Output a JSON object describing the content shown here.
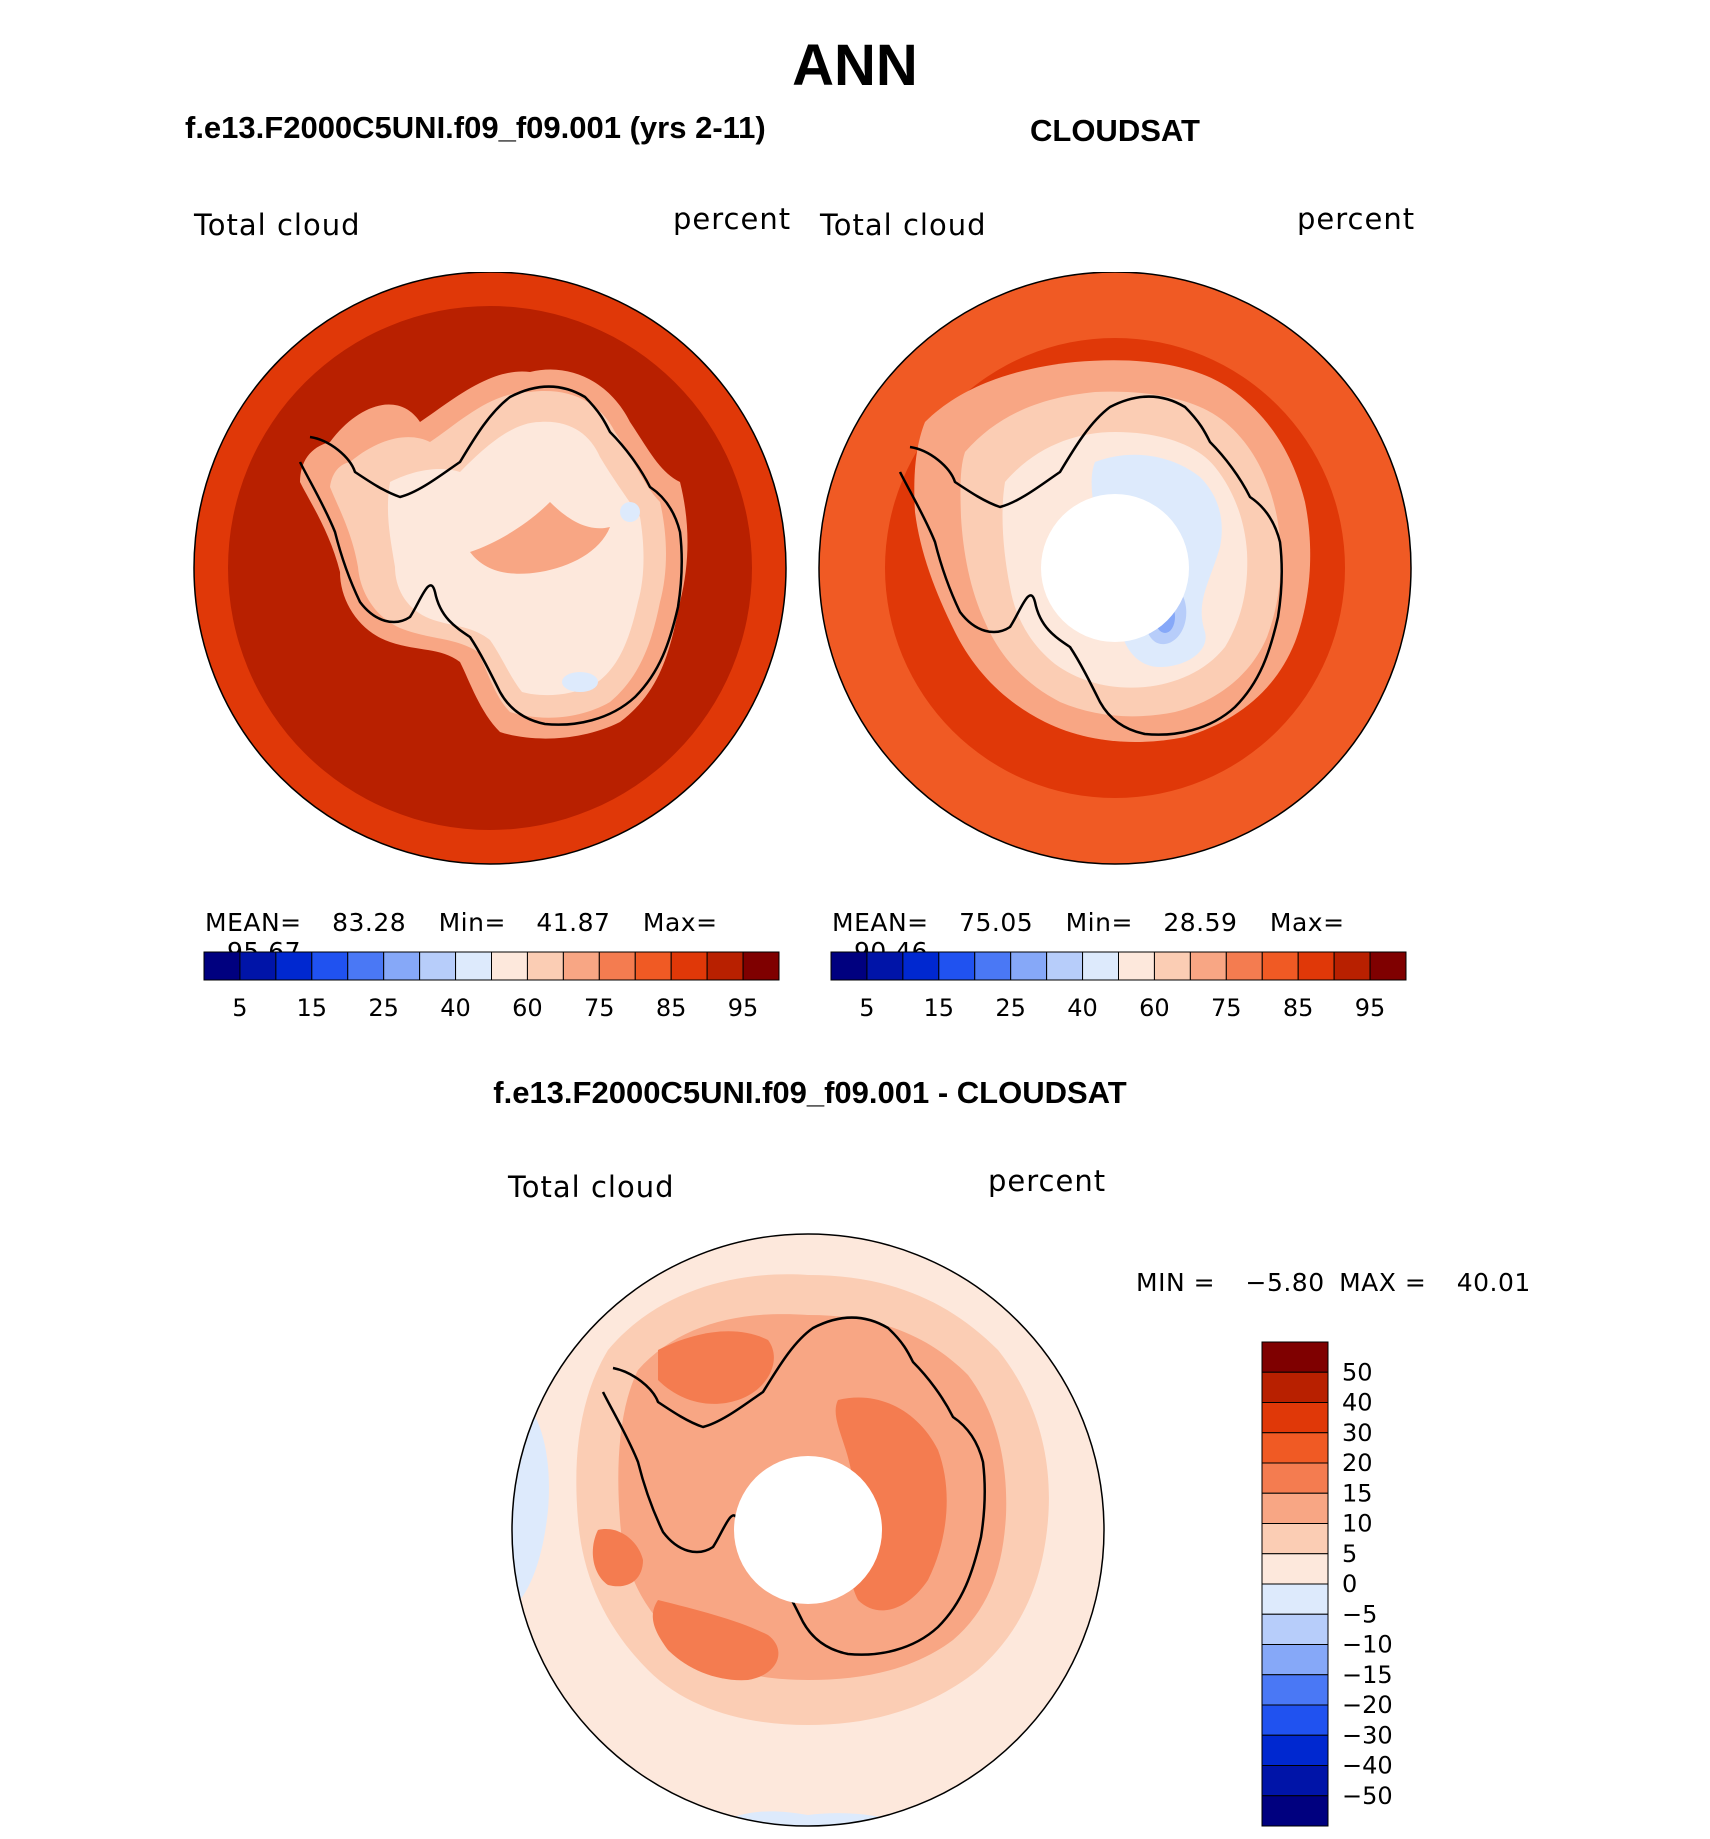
{
  "title": "ANN",
  "panels": [
    {
      "title": "f.e13.F2000C5UNI.f09_f09.001 (yrs 2-11)",
      "left_label": "Total cloud",
      "right_label": "percent",
      "stats": {
        "mean_label": "MEAN=",
        "mean": "83.28",
        "min_label": "Min=",
        "min": "41.87",
        "max_label": "Max=",
        "max": "95.67"
      }
    },
    {
      "title": "CLOUDSAT",
      "left_label": "Total cloud",
      "right_label": "percent",
      "stats": {
        "mean_label": "MEAN=",
        "mean": "75.05",
        "min_label": "Min=",
        "min": "28.59",
        "max_label": "Max=",
        "max": "90.46"
      }
    }
  ],
  "abs_colorbar": {
    "colors": [
      "#00007f",
      "#0014a8",
      "#0028d0",
      "#2052f0",
      "#4a78f5",
      "#86a8f8",
      "#b7cdfa",
      "#ddeafc",
      "#fde8dc",
      "#fbcdb4",
      "#f8a684",
      "#f47c50",
      "#f05a24",
      "#e03808",
      "#b82000",
      "#7f0000"
    ],
    "tick_labels": [
      "5",
      "15",
      "25",
      "40",
      "60",
      "75",
      "85",
      "95"
    ]
  },
  "diff": {
    "title": "f.e13.F2000C5UNI.f09_f09.001 - CLOUDSAT",
    "left_label": "Total cloud",
    "right_label": "percent",
    "minmax": {
      "min_label": "MIN =",
      "min": "−5.80",
      "max_label": "MAX =",
      "max": "40.01"
    },
    "colorbar": {
      "colors_top_to_bottom": [
        "#7f0000",
        "#b82000",
        "#e03808",
        "#f05a24",
        "#f47c50",
        "#f8a684",
        "#fbcdb4",
        "#fde8dc",
        "#ddeafc",
        "#b7cdfa",
        "#86a8f8",
        "#4a78f5",
        "#2052f0",
        "#0028d0",
        "#0014a8",
        "#00007f"
      ],
      "tick_labels": [
        "50",
        "40",
        "30",
        "20",
        "15",
        "10",
        "5",
        "0",
        "−5",
        "−10",
        "−15",
        "−20",
        "−30",
        "−40",
        "−50"
      ]
    }
  },
  "map_colors": {
    "ocean_model": "#b82000",
    "ocean_model_edge": "#e03808",
    "ocean_obs": "#e03808",
    "ocean_obs_mid": "#f05a24",
    "land_high": "#fde8dc",
    "land_mid": "#fbcdb4",
    "land_low": "#f8a684",
    "land_blue": "#ddeafc",
    "land_blue2": "#b7cdfa",
    "land_blue3": "#86a8f8",
    "diff_base": "#fde8dc",
    "diff_mid": "#fbcdb4",
    "diff_high": "#f8a684",
    "diff_top": "#f47c50",
    "diff_neg": "#ddeafc",
    "coast": "#000000"
  }
}
